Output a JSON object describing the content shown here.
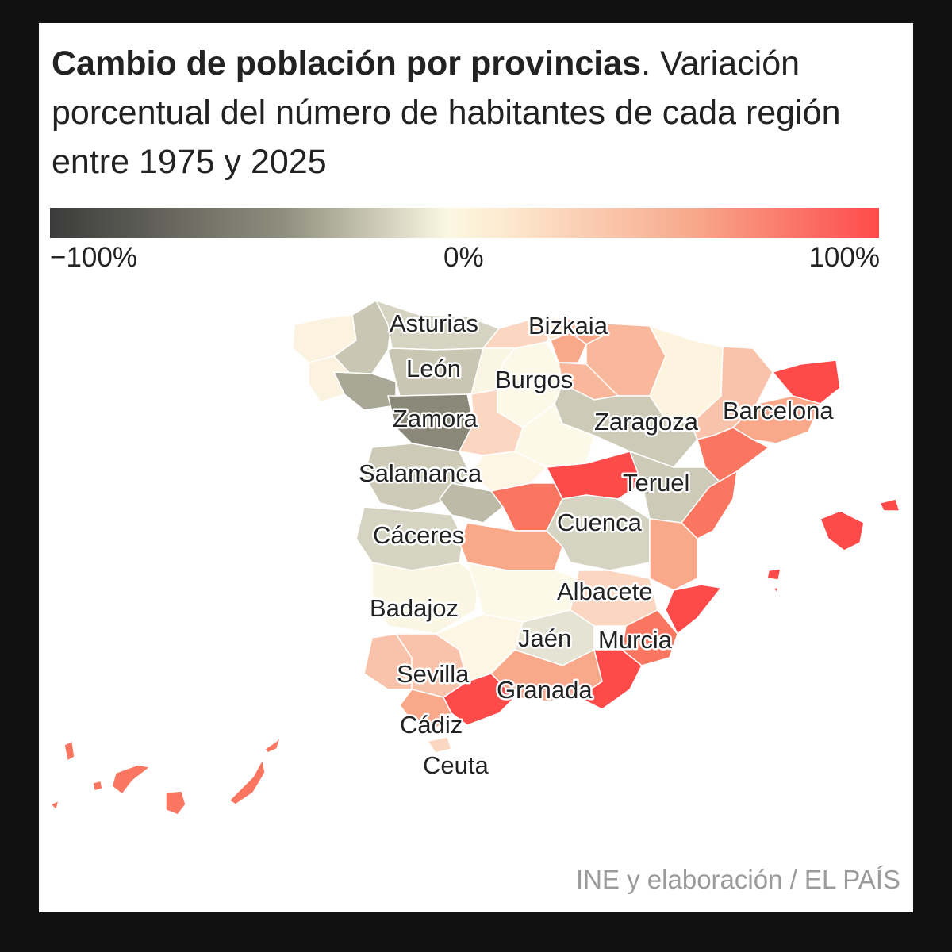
{
  "title": {
    "bold": "Cambio de población por provincias",
    "rest": ". Variación porcentual del número de habitantes de cada región entre 1975 y 2025"
  },
  "legend": {
    "min_label": "−100%",
    "mid_label": "0%",
    "max_label": "100%",
    "color_min": "#3b3b3b",
    "color_mid": "#fbf8e2",
    "color_max": "#ff4a4a"
  },
  "labels": {
    "asturias": "Asturias",
    "bizkaia": "Bizkaia",
    "leon": "León",
    "burgos": "Burgos",
    "zamora": "Zamora",
    "zaragoza": "Zaragoza",
    "barcelona": "Barcelona",
    "salamanca": "Salamanca",
    "teruel": "Teruel",
    "cuenca": "Cuenca",
    "caceres": "Cáceres",
    "albacete": "Albacete",
    "badajoz": "Badajoz",
    "jaen": "Jaén",
    "murcia": "Murcia",
    "sevilla": "Sevilla",
    "granada": "Granada",
    "cadiz": "Cádiz",
    "ceuta": "Ceuta"
  },
  "source": "INE y elaboración / EL PAÍS"
}
